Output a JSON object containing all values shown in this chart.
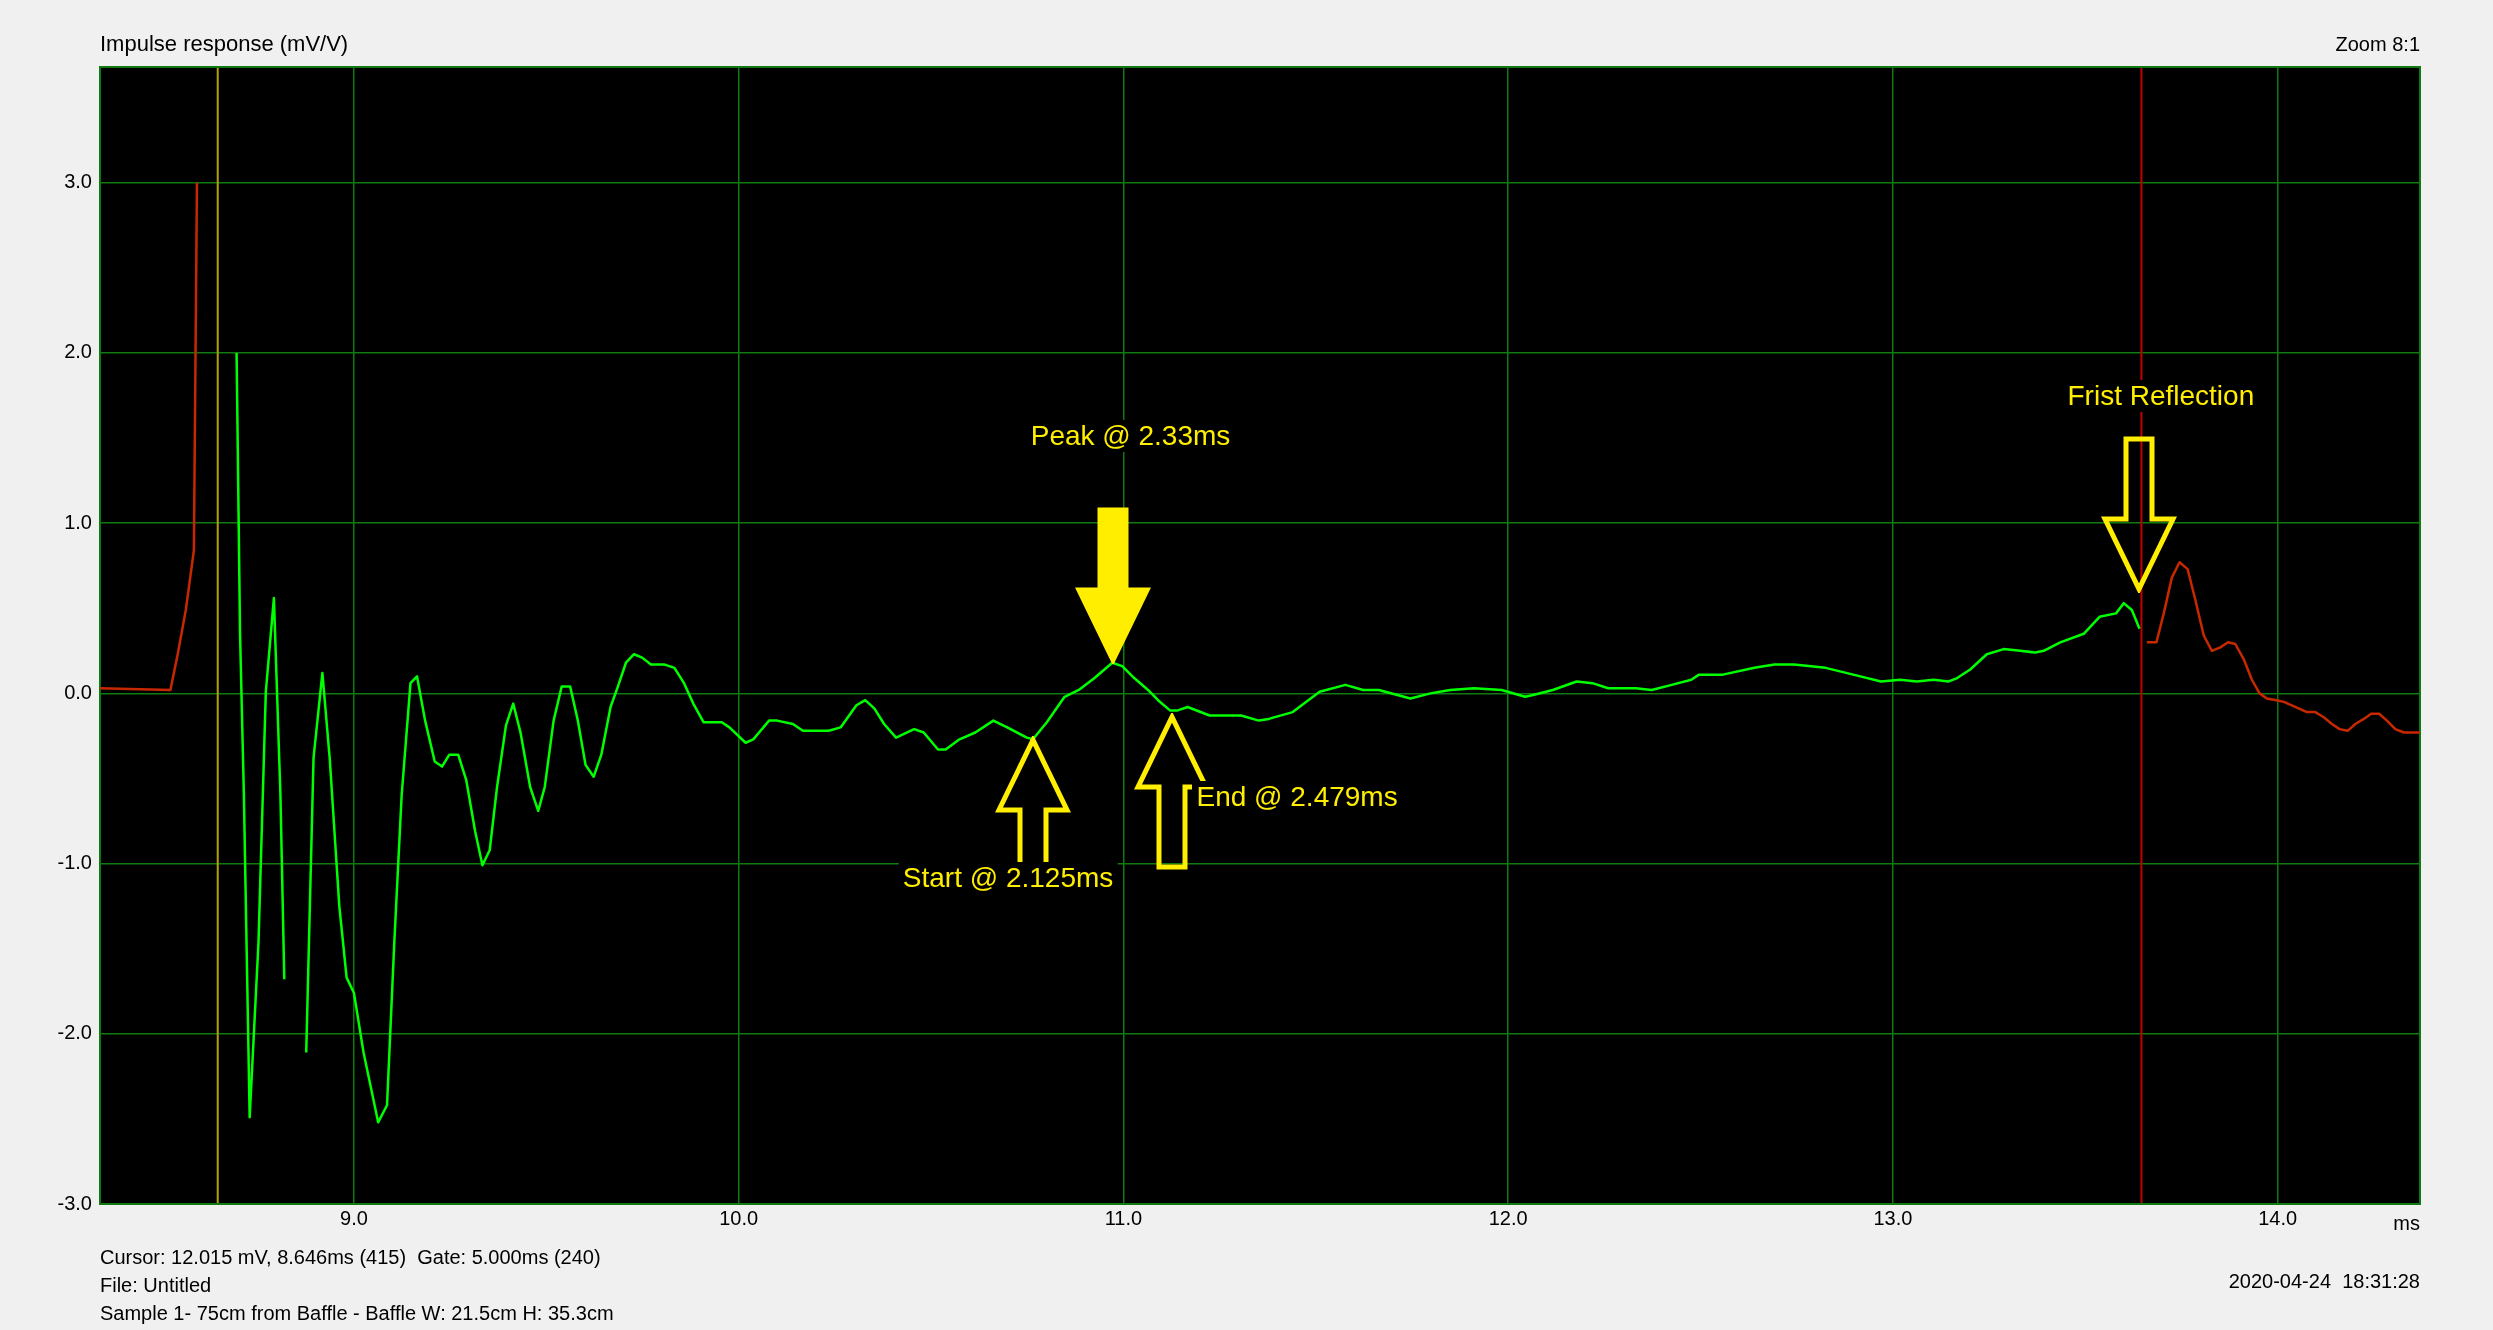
{
  "chart_data": {
    "type": "line",
    "ylabel": "Impulse response (mV/V)",
    "xlabel": "ms",
    "xlim": [
      8.34,
      14.37
    ],
    "ylim": [
      -3,
      3.68
    ],
    "xticks": [
      {
        "value": 9,
        "label": "9.0"
      },
      {
        "value": 10,
        "label": "10.0"
      },
      {
        "value": 11,
        "label": "11.0"
      },
      {
        "value": 12,
        "label": "12.0"
      },
      {
        "value": 13,
        "label": "13.0"
      },
      {
        "value": 14,
        "label": "14.0"
      }
    ],
    "yticks": [
      {
        "value": -3,
        "label": "-3.0"
      },
      {
        "value": -2,
        "label": "-2.0"
      },
      {
        "value": -1,
        "label": "-1.0"
      },
      {
        "value": 0,
        "label": "0.0"
      },
      {
        "value": 1,
        "label": "1.0"
      },
      {
        "value": 2,
        "label": "2.0"
      },
      {
        "value": 3,
        "label": "3.0"
      }
    ],
    "grid": true,
    "series": [
      {
        "color": "#00ff00",
        "x": [
          8.695,
          8.704,
          8.714,
          8.729,
          8.752,
          8.771,
          8.792,
          8.809,
          8.819,
          8.832,
          8.876,
          8.895,
          8.918,
          8.937,
          8.962,
          8.981,
          9.0,
          9.025,
          9.063,
          9.086,
          9.105,
          9.124,
          9.147,
          9.164,
          9.185,
          9.21,
          9.229,
          9.248,
          9.271,
          9.292,
          9.315,
          9.334,
          9.353,
          9.372,
          9.395,
          9.414,
          9.433,
          9.458,
          9.479,
          9.496,
          9.519,
          9.54,
          9.562,
          9.582,
          9.602,
          9.623,
          9.643,
          9.667,
          9.686,
          9.707,
          9.728,
          9.749,
          9.772,
          9.806,
          9.833,
          9.858,
          9.882,
          9.909,
          9.956,
          9.976,
          10.018,
          10.038,
          10.079,
          10.1,
          10.141,
          10.167,
          10.234,
          10.265,
          10.306,
          10.329,
          10.353,
          10.378,
          10.409,
          10.456,
          10.481,
          10.518,
          10.538,
          10.574,
          10.615,
          10.662,
          10.698,
          10.749,
          10.765,
          10.801,
          10.847,
          10.884,
          10.925,
          10.971,
          10.997,
          11.028,
          11.064,
          11.09,
          11.121,
          11.141,
          11.167,
          11.224,
          11.306,
          11.352,
          11.378,
          11.44,
          11.51,
          11.577,
          11.623,
          11.664,
          11.746,
          11.798,
          11.849,
          11.911,
          11.983,
          12.044,
          12.065,
          12.116,
          12.178,
          12.219,
          12.26,
          12.332,
          12.373,
          12.425,
          12.476,
          12.496,
          12.558,
          12.64,
          12.692,
          12.743,
          12.825,
          12.897,
          12.969,
          13.019,
          13.062,
          13.106,
          13.145,
          13.167,
          13.201,
          13.244,
          13.288,
          13.331,
          13.37,
          13.392,
          13.435,
          13.496,
          13.537,
          13.58,
          13.6,
          13.621,
          13.641
        ],
        "values": [
          2.0,
          0.35,
          -0.6,
          -2.49,
          -1.46,
          0.01,
          0.56,
          -0.6,
          -1.68,
          null,
          -2.11,
          -0.38,
          0.12,
          -0.38,
          -1.25,
          -1.67,
          -1.76,
          -2.11,
          -2.52,
          -2.42,
          -1.46,
          -0.6,
          0.06,
          0.1,
          -0.16,
          -0.4,
          -0.43,
          -0.36,
          -0.36,
          -0.51,
          -0.81,
          -1.01,
          -0.92,
          -0.55,
          -0.19,
          -0.06,
          -0.23,
          -0.55,
          -0.69,
          -0.55,
          -0.16,
          0.04,
          0.04,
          -0.16,
          -0.42,
          -0.49,
          -0.36,
          -0.08,
          0.04,
          0.18,
          0.23,
          0.21,
          0.17,
          0.17,
          0.15,
          0.06,
          -0.06,
          -0.17,
          -0.17,
          -0.2,
          -0.29,
          -0.27,
          -0.16,
          -0.16,
          -0.18,
          -0.22,
          -0.22,
          -0.2,
          -0.07,
          -0.04,
          -0.09,
          -0.18,
          -0.26,
          -0.21,
          -0.23,
          -0.33,
          -0.33,
          -0.27,
          -0.23,
          -0.16,
          -0.2,
          -0.26,
          -0.27,
          -0.17,
          -0.02,
          0.02,
          0.09,
          0.18,
          0.16,
          0.09,
          0.02,
          -0.04,
          -0.1,
          -0.1,
          -0.08,
          -0.13,
          -0.13,
          -0.16,
          -0.15,
          -0.11,
          0.01,
          0.05,
          0.02,
          0.02,
          -0.03,
          0.0,
          0.02,
          0.03,
          0.02,
          -0.02,
          -0.01,
          0.02,
          0.07,
          0.06,
          0.03,
          0.03,
          0.02,
          0.05,
          0.08,
          0.11,
          0.11,
          0.15,
          0.17,
          0.17,
          0.15,
          0.11,
          0.07,
          0.08,
          0.07,
          0.08,
          0.07,
          0.09,
          0.14,
          0.23,
          0.26,
          0.25,
          0.24,
          0.25,
          0.3,
          0.35,
          0.45,
          0.47,
          0.53,
          0.49,
          0.38
        ]
      },
      {
        "color": "#c82800",
        "x": [
          8.34,
          8.523,
          8.542,
          8.563,
          8.584,
          8.592,
          10,
          13.66,
          13.685,
          13.704,
          13.725,
          13.745,
          13.766,
          13.786,
          13.808,
          13.829,
          13.851,
          13.871,
          13.89,
          13.912,
          13.933,
          13.953,
          13.972,
          13.997,
          14.016,
          14.037,
          14.076,
          14.098,
          14.12,
          14.141,
          14.161,
          14.182,
          14.202,
          14.224,
          14.243,
          14.264,
          14.284,
          14.306,
          14.328,
          14.37
        ],
        "values": [
          0.03,
          0.02,
          0.23,
          0.49,
          0.84,
          3.0,
          null,
          0.3,
          0.3,
          0.47,
          0.68,
          0.77,
          0.73,
          0.55,
          0.34,
          0.25,
          0.27,
          0.3,
          0.29,
          0.2,
          0.08,
          0.0,
          -0.03,
          -0.04,
          -0.05,
          -0.07,
          -0.11,
          -0.11,
          -0.14,
          -0.18,
          -0.21,
          -0.22,
          -0.18,
          -0.15,
          -0.12,
          -0.12,
          -0.16,
          -0.21,
          -0.23,
          -0.23
        ]
      }
    ],
    "ref_lines": [
      {
        "axis": "x",
        "value": 8.646,
        "color": "#b4a000"
      },
      {
        "axis": "x",
        "value": 13.646,
        "color": "#c00000"
      }
    ],
    "annotations": [
      "Zoom 8:1",
      "Peak @ 2.33ms",
      "Start @ 2.125ms",
      "End @ 2.479ms",
      "Frist Reflection",
      "Cursor: 12.015 mV, 8.646ms (415)  Gate: 5.000ms (240)",
      "File: Untitled",
      "Sample 1- 75cm from Baffle - Baffle W: 21.5cm H: 35.3cm",
      "2020-04-24  18:31:28"
    ]
  }
}
